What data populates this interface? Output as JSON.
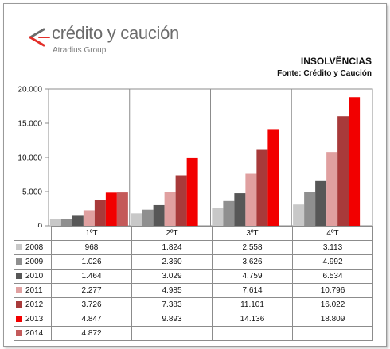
{
  "brand": {
    "name": "crédito y caución",
    "sub": "Atradius Group",
    "colors": {
      "grey": "#6b6b6b",
      "red": "#e3302a"
    }
  },
  "header": {
    "title": "INSOLVÊNCIAS",
    "subtitle": "Fonte: Crédito y Caución"
  },
  "chart_data": {
    "type": "bar",
    "title": "INSOLVÊNCIAS",
    "subtitle": "Fonte: Crédito y Caución",
    "categories": [
      "1ºT",
      "2ºT",
      "3ºT",
      "4ºT"
    ],
    "ylim": [
      0,
      20000
    ],
    "yticks": [
      "0",
      "5.000",
      "10.000",
      "15.000",
      "20.000"
    ],
    "ytick_values": [
      0,
      5000,
      10000,
      15000,
      20000
    ],
    "grid": false,
    "legend": "data table below chart",
    "series": [
      {
        "name": "2008",
        "color": "#c8c8c8",
        "values": [
          968,
          1824,
          2558,
          3113
        ],
        "labels": [
          "968",
          "1.824",
          "2.558",
          "3.113"
        ]
      },
      {
        "name": "2009",
        "color": "#8f8f8f",
        "values": [
          1026,
          2360,
          3626,
          4992
        ],
        "labels": [
          "1.026",
          "2.360",
          "3.626",
          "4.992"
        ]
      },
      {
        "name": "2010",
        "color": "#575757",
        "values": [
          1464,
          3029,
          4759,
          6534
        ],
        "labels": [
          "1.464",
          "3.029",
          "4.759",
          "6.534"
        ]
      },
      {
        "name": "2011",
        "color": "#e0a0a0",
        "values": [
          2277,
          4985,
          7614,
          10796
        ],
        "labels": [
          "2.277",
          "4.985",
          "7.614",
          "10.796"
        ]
      },
      {
        "name": "2012",
        "color": "#a83a3a",
        "values": [
          3726,
          7383,
          11101,
          16022
        ],
        "labels": [
          "3.726",
          "7.383",
          "11.101",
          "16.022"
        ]
      },
      {
        "name": "2013",
        "color": "#f20000",
        "values": [
          4847,
          9893,
          14136,
          18809
        ],
        "labels": [
          "4.847",
          "9.893",
          "14.136",
          "18.809"
        ]
      },
      {
        "name": "2014",
        "color": "#c45a5a",
        "values": [
          4872,
          null,
          null,
          null
        ],
        "labels": [
          "4.872",
          "",
          "",
          ""
        ]
      }
    ]
  }
}
